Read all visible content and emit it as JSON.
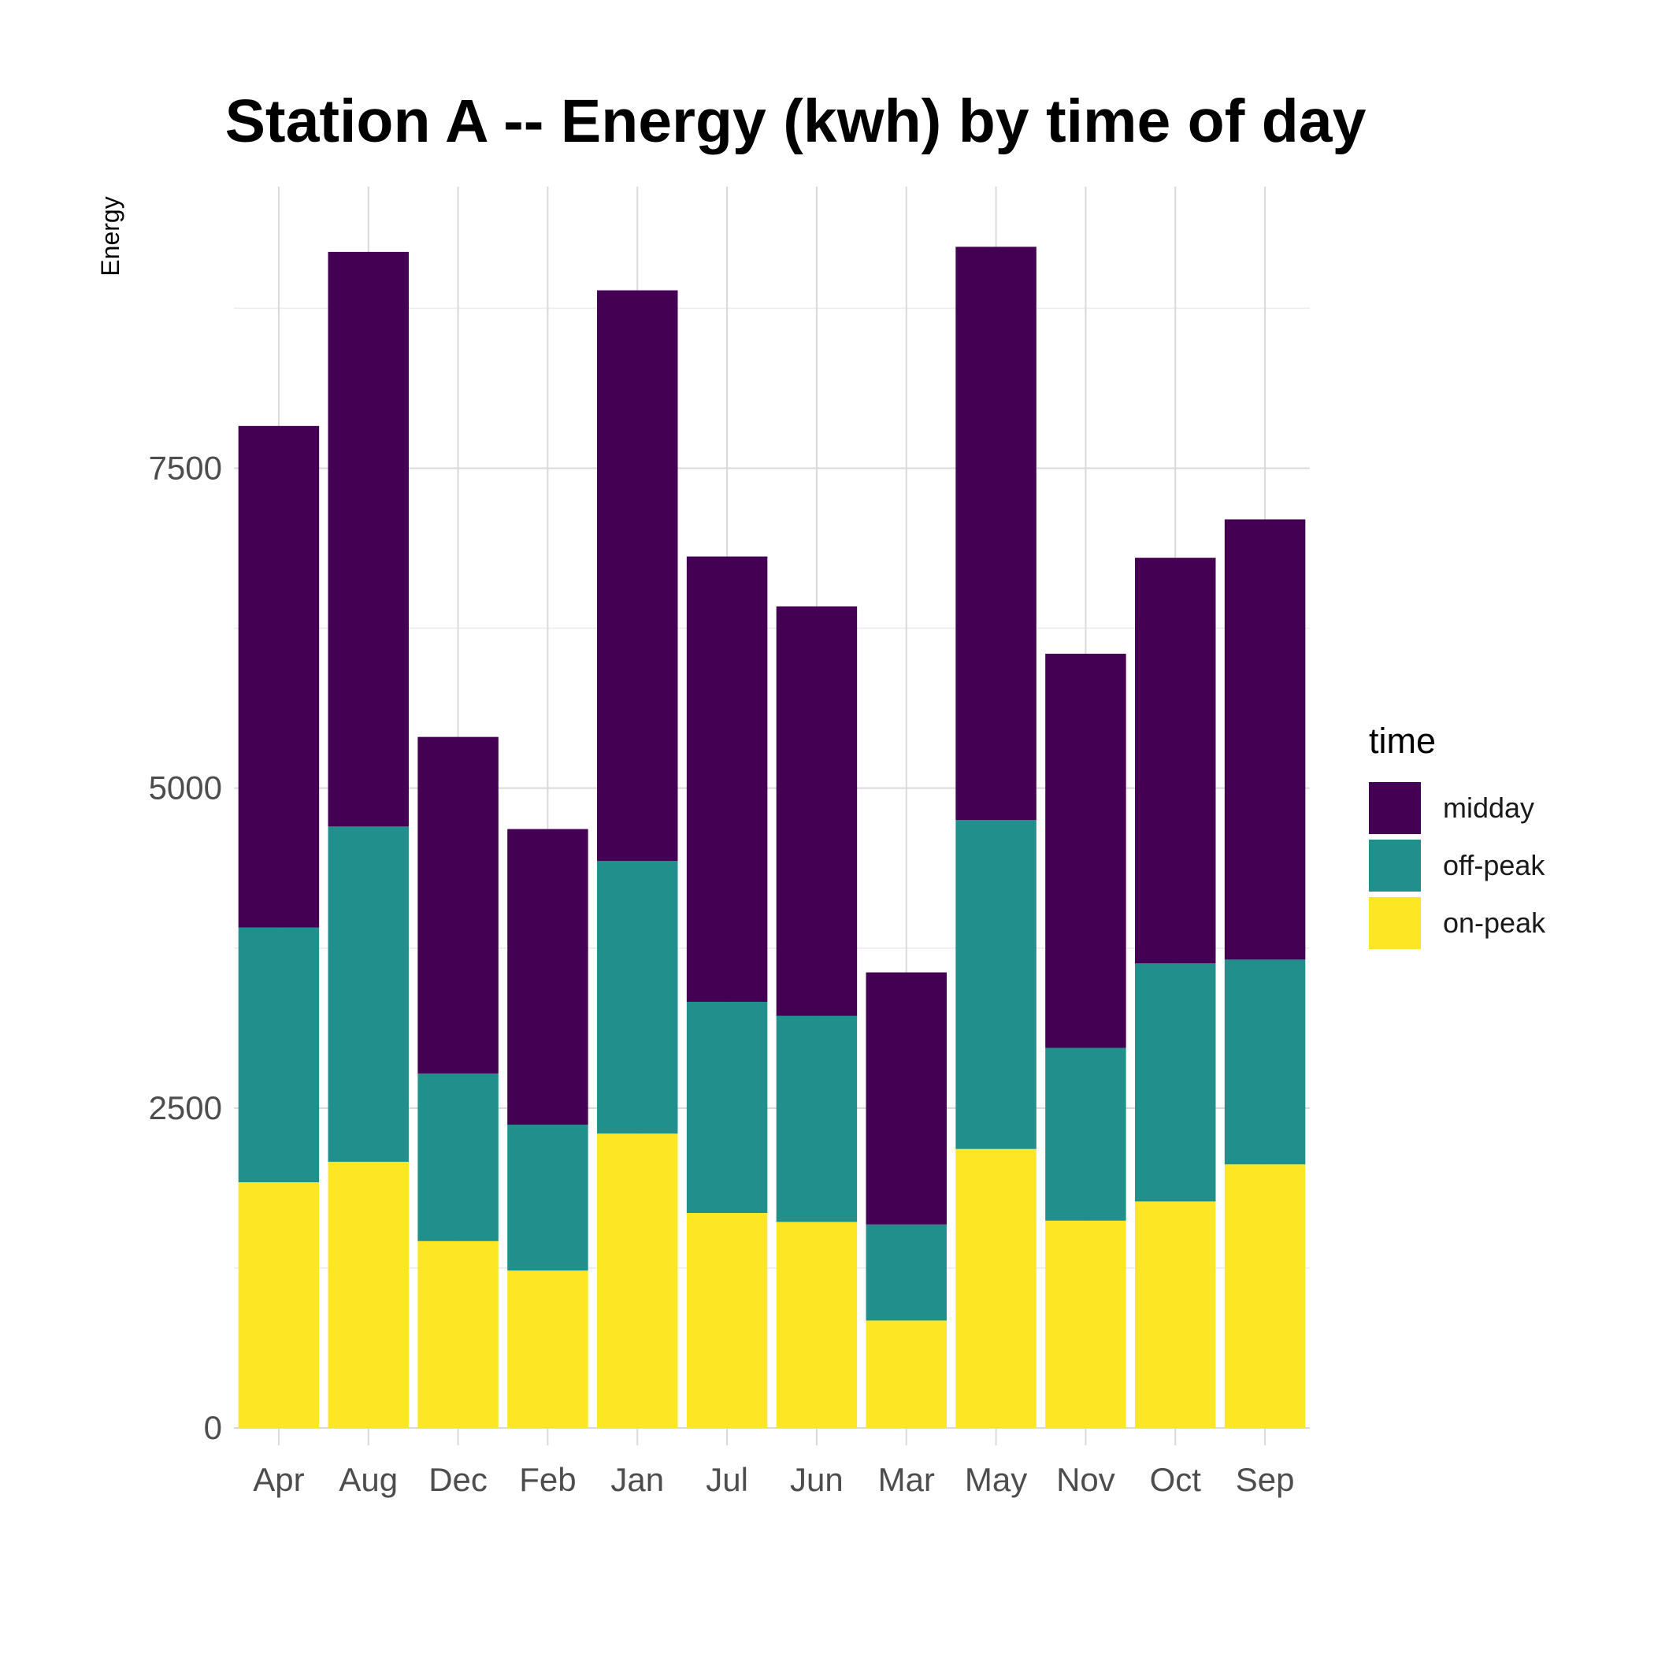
{
  "chart_data": {
    "type": "bar",
    "stacked": true,
    "title": "Station A -- Energy (kwh) by time of day",
    "xlabel": "",
    "ylabel": "Energy",
    "ylim": [
      0,
      9700
    ],
    "yticks": [
      0,
      2500,
      5000,
      7500
    ],
    "grid": true,
    "legend_position": "right",
    "legend_title": "time",
    "categories": [
      "Apr",
      "Aug",
      "Dec",
      "Feb",
      "Jan",
      "Jul",
      "Jun",
      "Mar",
      "May",
      "Nov",
      "Oct",
      "Sep"
    ],
    "series": [
      {
        "name": "on-peak",
        "color": "#FDE725",
        "values": [
          1920,
          2080,
          1460,
          1230,
          2300,
          1680,
          1610,
          840,
          2180,
          1620,
          1770,
          2060
        ]
      },
      {
        "name": "off-peak",
        "color": "#21908C",
        "values": [
          1990,
          2620,
          1310,
          1140,
          2130,
          1650,
          1610,
          750,
          2570,
          1350,
          1860,
          1600
        ]
      },
      {
        "name": "midday",
        "color": "#440154",
        "values": [
          3920,
          4490,
          2630,
          2310,
          4460,
          3480,
          3200,
          1970,
          4480,
          3080,
          3170,
          3440
        ]
      }
    ]
  }
}
